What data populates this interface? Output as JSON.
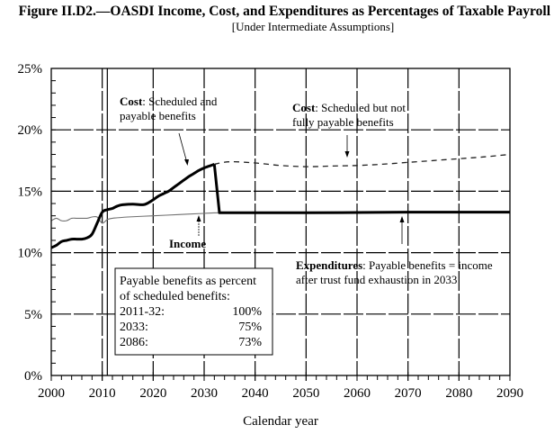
{
  "chart_data": {
    "type": "line",
    "title": "Figure II.D2.—OASDI Income, Cost, and Expenditures as Percentages of Taxable Payroll",
    "subtitle": "[Under Intermediate Assumptions]",
    "xlabel": "Calendar year",
    "ylabel": "",
    "xlim": [
      2000,
      2090
    ],
    "ylim": [
      0,
      25
    ],
    "x_ticks": [
      2000,
      2010,
      2020,
      2030,
      2040,
      2050,
      2060,
      2070,
      2080,
      2090
    ],
    "x_tick_labels": [
      "2000",
      "2010",
      "2020",
      "2030",
      "2040",
      "2050",
      "2060",
      "2070",
      "2080",
      "2090"
    ],
    "y_ticks": [
      0,
      5,
      10,
      15,
      20,
      25
    ],
    "y_tick_labels": [
      "0%",
      "5%",
      "10%",
      "15%",
      "20%",
      "25%"
    ],
    "grid": true,
    "historical_divider_year": 2011,
    "series": [
      {
        "name": "Cost: Scheduled and payable benefits",
        "style": "thick-solid",
        "x": [
          2000,
          2001,
          2002,
          2003,
          2004,
          2005,
          2006,
          2007,
          2008,
          2009,
          2010,
          2011,
          2012,
          2013,
          2014,
          2016,
          2018,
          2019,
          2020,
          2021,
          2022,
          2023,
          2024,
          2025,
          2026,
          2027,
          2028,
          2029,
          2030,
          2031,
          2032
        ],
        "values": [
          10.4,
          10.6,
          10.9,
          11.0,
          11.1,
          11.1,
          11.1,
          11.2,
          11.5,
          12.4,
          13.3,
          13.5,
          13.6,
          13.8,
          13.9,
          13.95,
          13.9,
          14.05,
          14.3,
          14.6,
          14.8,
          15.0,
          15.3,
          15.6,
          15.9,
          16.2,
          16.45,
          16.7,
          16.9,
          17.05,
          17.2
        ]
      },
      {
        "name": "Cost: Scheduled but not fully payable benefits",
        "style": "dashed",
        "x": [
          2032,
          2035,
          2040,
          2045,
          2050,
          2055,
          2060,
          2065,
          2070,
          2075,
          2080,
          2085,
          2090
        ],
        "values": [
          17.2,
          17.4,
          17.3,
          17.1,
          17.0,
          17.05,
          17.1,
          17.2,
          17.35,
          17.5,
          17.65,
          17.8,
          18.0
        ]
      },
      {
        "name": "Income",
        "style": "thin-gray",
        "x": [
          2000,
          2001,
          2002,
          2003,
          2004,
          2005,
          2006,
          2007,
          2008,
          2009,
          2010,
          2011,
          2012,
          2015,
          2020,
          2025,
          2030,
          2033,
          2040,
          2050,
          2060,
          2070,
          2080,
          2090
        ],
        "values": [
          12.6,
          12.8,
          12.6,
          12.6,
          12.8,
          12.8,
          12.8,
          12.8,
          12.9,
          12.9,
          12.4,
          12.7,
          12.8,
          12.9,
          13.0,
          13.1,
          13.2,
          13.25,
          13.25,
          13.25,
          13.27,
          13.3,
          13.3,
          13.3
        ]
      },
      {
        "name": "Expenditures: Payable benefits = income after trust fund exhaustion in 2033",
        "style": "thick-solid",
        "x": [
          2032,
          2033,
          2040,
          2050,
          2060,
          2070,
          2080,
          2090
        ],
        "values": [
          17.2,
          13.25,
          13.25,
          13.25,
          13.27,
          13.3,
          13.3,
          13.3
        ]
      }
    ],
    "annotations": {
      "cost_payable": {
        "bold": "Cost",
        "rest": ": Scheduled and",
        "line2": "payable benefits"
      },
      "cost_not_payable": {
        "bold": "Cost",
        "rest": ": Scheduled but not",
        "line2": "fully payable benefits"
      },
      "income": {
        "bold": "Income"
      },
      "expenditures": {
        "bold": "Expenditures",
        "rest": ": Payable benefits = income",
        "line2": "after trust fund exhaustion in 2033"
      }
    },
    "legend_box": {
      "heading_line1": "Payable benefits as percent",
      "heading_line2": "of scheduled benefits:",
      "rows": [
        {
          "period": "2011-32:",
          "value": "100%"
        },
        {
          "period": "2033:",
          "value": "75%"
        },
        {
          "period": "2086:",
          "value": "73%"
        }
      ],
      "placement": "lower-left"
    },
    "colors": {
      "axis": "#000000",
      "cost": "#000000",
      "income": "#707070",
      "dashed": "#222222"
    }
  }
}
